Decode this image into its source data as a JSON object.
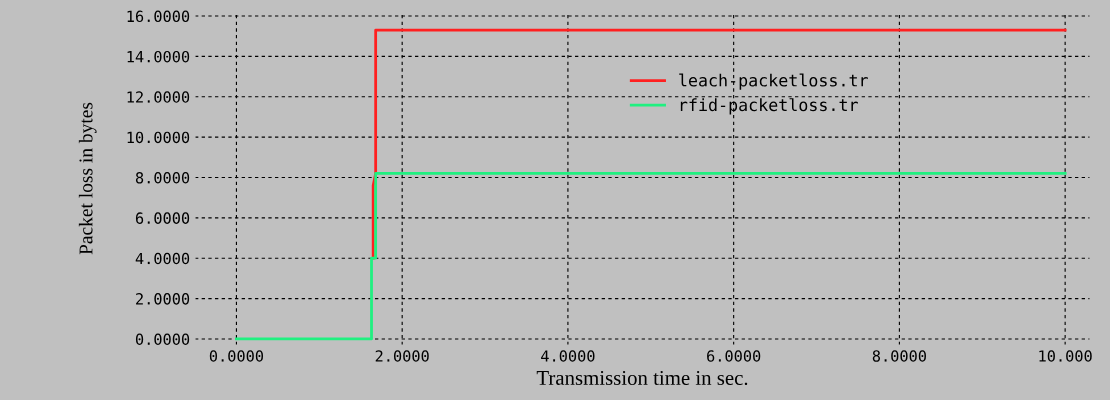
{
  "chart_data": {
    "type": "line",
    "xlabel": "Transmission time in sec.",
    "ylabel": "Packet loss in bytes",
    "series": [
      {
        "name": "leach-packetloss.tr",
        "color": "#ff2020",
        "x": [
          1.65,
          1.65,
          1.68,
          1.68,
          10
        ],
        "values": [
          4,
          7.6,
          8.2,
          15.3,
          15.3
        ]
      },
      {
        "name": "rfid-packetloss.tr",
        "color": "#20f080",
        "x": [
          0,
          1.63,
          1.63,
          1.68,
          1.68,
          10
        ],
        "values": [
          0,
          0,
          4,
          4,
          8.2,
          8.2
        ]
      }
    ],
    "xlim": [
      -0.5,
      10.3
    ],
    "ylim": [
      -0.3,
      16.2
    ],
    "xticks": [
      {
        "value": 0,
        "label": "0.0000"
      },
      {
        "value": 2,
        "label": "2.0000"
      },
      {
        "value": 4,
        "label": "4.0000"
      },
      {
        "value": 6,
        "label": "6.0000"
      },
      {
        "value": 8,
        "label": "8.0000"
      },
      {
        "value": 10,
        "label": "10.000"
      }
    ],
    "yticks": [
      {
        "value": 0,
        "label": "0.0000"
      },
      {
        "value": 2,
        "label": "2.0000"
      },
      {
        "value": 4,
        "label": "4.0000"
      },
      {
        "value": 6,
        "label": "6.0000"
      },
      {
        "value": 8,
        "label": "8.0000"
      },
      {
        "value": 10,
        "label": "10.0000"
      },
      {
        "value": 12,
        "label": "12.0000"
      },
      {
        "value": 14,
        "label": "14.0000"
      },
      {
        "value": 16,
        "label": "16.0000"
      }
    ],
    "grid": true,
    "legend": "top",
    "line_style": "solid",
    "marker": "none"
  }
}
